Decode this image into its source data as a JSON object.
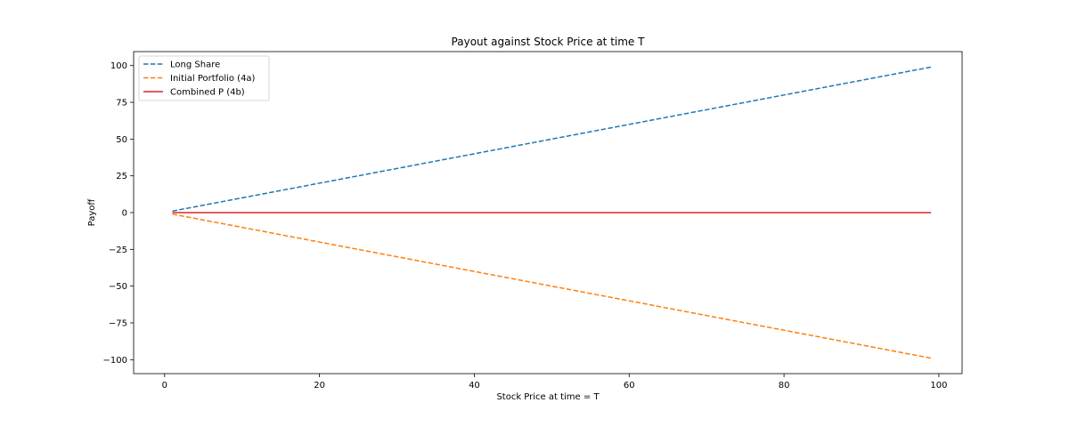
{
  "chart_data": {
    "type": "line",
    "title": "Payout against Stock Price at time T",
    "xlabel": "Stock Price at time = T",
    "ylabel": "Payoff",
    "xlim": [
      -4,
      103
    ],
    "ylim": [
      -109.5,
      109.5
    ],
    "xticks": [
      0,
      20,
      40,
      60,
      80,
      100
    ],
    "yticks": [
      -100,
      -75,
      -50,
      -25,
      0,
      25,
      50,
      75,
      100
    ],
    "grid": false,
    "legend_position": "top-left",
    "series": [
      {
        "name": "Long Share",
        "color": "#1f77b4",
        "linestyle": "dashed",
        "x": [
          1,
          99
        ],
        "y": [
          1,
          99
        ]
      },
      {
        "name": "Initial Portfolio (4a)",
        "color": "#ff7f0e",
        "linestyle": "dashed",
        "x": [
          1,
          99
        ],
        "y": [
          -1,
          -99
        ]
      },
      {
        "name": "Combined P (4b)",
        "color": "#d62728",
        "linestyle": "solid",
        "x": [
          1,
          99
        ],
        "y": [
          0,
          0
        ]
      }
    ]
  }
}
